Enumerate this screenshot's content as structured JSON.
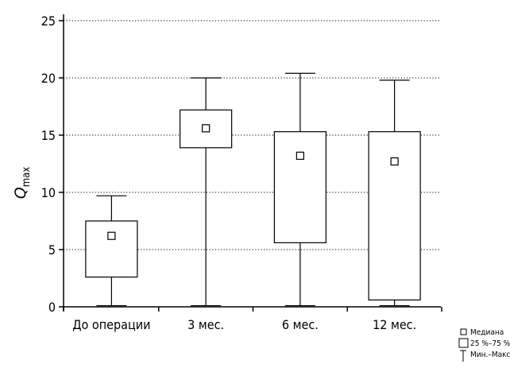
{
  "chart_data": {
    "type": "box",
    "title": "",
    "ylabel": "Q",
    "ylabel_subscript": "max",
    "xlabel": "",
    "ylim": [
      0,
      25
    ],
    "yticks": [
      0,
      5,
      10,
      15,
      20,
      25
    ],
    "grid": "horizontal-dotted",
    "categories": [
      "До операции",
      "3 мес.",
      "6 мес.",
      "12 мес."
    ],
    "boxes": [
      {
        "min": 0.1,
        "q1": 2.6,
        "median": 6.2,
        "q3": 7.5,
        "max": 9.7
      },
      {
        "min": 0.1,
        "q1": 13.9,
        "median": 15.6,
        "q3": 17.2,
        "max": 20.0
      },
      {
        "min": 0.1,
        "q1": 5.6,
        "median": 13.2,
        "q3": 15.3,
        "max": 20.4
      },
      {
        "min": 0.1,
        "q1": 0.6,
        "median": 12.7,
        "q3": 15.3,
        "max": 19.8
      }
    ],
    "legend": {
      "position": "bottom-right",
      "items": [
        {
          "symbol": "square-marker",
          "label": "Медиана"
        },
        {
          "symbol": "box",
          "label": "25 %–75 %"
        },
        {
          "symbol": "whisker",
          "label": "Мин.–Макс"
        }
      ]
    }
  }
}
